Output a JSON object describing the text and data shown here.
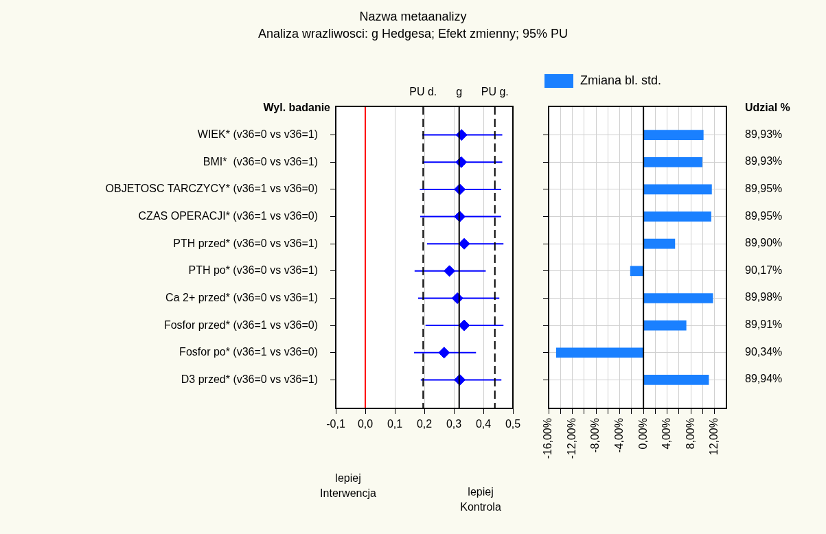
{
  "chart_data": [
    {
      "type": "scatter",
      "orientation": "horizontal",
      "title": "Nazwa metaanalizy",
      "subtitle": "Analiza wrazliwosci: g Hedgesa; Efekt zmienny; 95% PU",
      "ylabel": "Wyl. badanie",
      "categories": [
        "WIEK* (v36=0 vs v36=1)",
        "BMI*  (v36=0 vs v36=1)",
        "OBJETOSC TARCZYCY* (v36=1 vs v36=0)",
        "CZAS OPERACJI* (v36=1 vs v36=0)",
        "PTH przed* (v36=0 vs v36=1)",
        "PTH po* (v36=0 vs v36=1)",
        "Ca 2+ przed* (v36=0 vs v36=1)",
        "Fosfor przed* (v36=1 vs v36=0)",
        "Fosfor po* (v36=1 vs v36=0)",
        "D3 przed* (v36=0 vs v36=1)"
      ],
      "series": [
        {
          "color": "#0000ff",
          "values": [
            0.326,
            0.325,
            0.32,
            0.32,
            0.335,
            0.285,
            0.312,
            0.335,
            0.267,
            0.32
          ],
          "errors": [
            [
              0.193,
              0.464
            ],
            [
              0.194,
              0.464
            ],
            [
              0.185,
              0.46
            ],
            [
              0.186,
              0.46
            ],
            [
              0.209,
              0.468
            ],
            [
              0.167,
              0.408
            ],
            [
              0.179,
              0.454
            ],
            [
              0.204,
              0.468
            ],
            [
              0.165,
              0.375
            ],
            [
              0.188,
              0.461
            ]
          ]
        }
      ],
      "marker": "diamond",
      "xlim": [
        -0.1,
        0.5
      ],
      "xticks": [
        {
          "value": -0.1,
          "label": "-0,1"
        },
        {
          "value": 0,
          "label": "0,0"
        },
        {
          "value": 0.1,
          "label": "0,1"
        },
        {
          "value": 0.2,
          "label": "0,2"
        },
        {
          "value": 0.3,
          "label": "0,3"
        },
        {
          "value": 0.4,
          "label": "0,4"
        },
        {
          "value": 0.5,
          "label": "0,5"
        }
      ],
      "grid": "x",
      "ref_lines": [
        {
          "axis": "x",
          "value": 0,
          "color": "#ff0000",
          "line_style": "solid"
        },
        {
          "axis": "x",
          "value": 0.196,
          "label": "PU d.",
          "color": "#000000",
          "line_style": "dashed"
        },
        {
          "axis": "x",
          "value": 0.318,
          "label": "g",
          "color": "#000000",
          "line_style": "solid"
        },
        {
          "axis": "x",
          "value": 0.439,
          "label": "PU g.",
          "color": "#000000",
          "line_style": "dashed"
        }
      ],
      "annotations": [
        "lepiej\nInterwencja",
        "lepiej\nKontrola"
      ]
    },
    {
      "type": "bar",
      "orientation": "horizontal",
      "categories": [
        null,
        null,
        null,
        null,
        null,
        null,
        null,
        null,
        null,
        null
      ],
      "series": [
        {
          "name": "Zmiana bl. std.",
          "color": "#1a80ff",
          "values": [
            10.1,
            9.9,
            11.5,
            11.4,
            5.3,
            -2.2,
            11.7,
            7.2,
            -14.7,
            11.0
          ]
        }
      ],
      "xlim": [
        -16,
        14
      ],
      "xticks": [
        {
          "value": -16,
          "label": "-16,00%"
        },
        {
          "value": -14,
          "label": null
        },
        {
          "value": -12,
          "label": "-12,00%"
        },
        {
          "value": -10,
          "label": null
        },
        {
          "value": -8,
          "label": "-8,00%"
        },
        {
          "value": -6,
          "label": null
        },
        {
          "value": -4,
          "label": "-4,00%"
        },
        {
          "value": -2,
          "label": null
        },
        {
          "value": 0,
          "label": "0,00%"
        },
        {
          "value": 2,
          "label": null
        },
        {
          "value": 4,
          "label": "4,00%"
        },
        {
          "value": 6,
          "label": null
        },
        {
          "value": 8,
          "label": "8,00%"
        },
        {
          "value": 10,
          "label": null
        },
        {
          "value": 12,
          "label": "12,00%"
        }
      ],
      "grid": true,
      "legend": "top",
      "tick_labels": "x",
      "ref_lines": [
        {
          "axis": "x",
          "value": 0,
          "color": "#000000",
          "line_style": "solid"
        }
      ]
    },
    {
      "type": "other",
      "title": "Udzial %",
      "annotations": [
        "89,93%",
        "89,93%",
        "89,95%",
        "89,95%",
        "89,90%",
        "90,17%",
        "89,98%",
        "89,91%",
        "90,34%",
        "89,94%"
      ]
    }
  ]
}
